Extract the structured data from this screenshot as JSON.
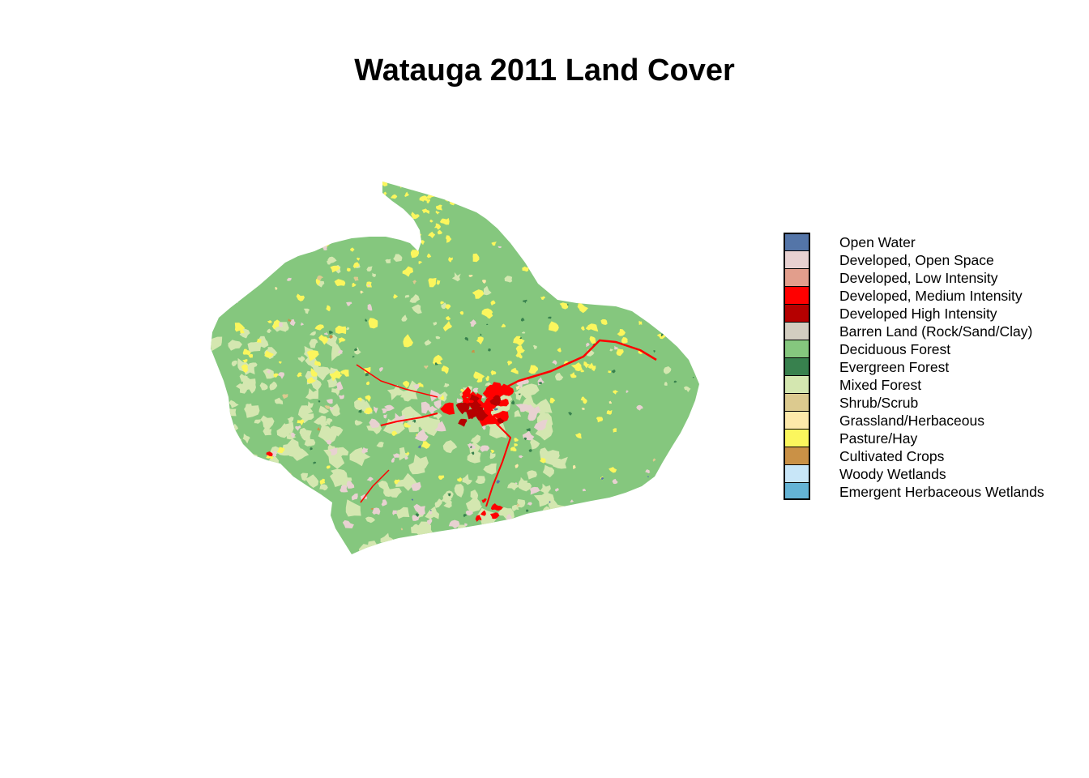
{
  "map": {
    "title": "Watauga 2011 Land Cover",
    "background_class": "Deciduous Forest",
    "legend": [
      {
        "label": "Open Water",
        "color": "#5475A8"
      },
      {
        "label": "Developed, Open Space",
        "color": "#E8D1D1"
      },
      {
        "label": "Developed, Low Intensity",
        "color": "#E29E8C"
      },
      {
        "label": "Developed, Medium Intensity",
        "color": "#FF0000"
      },
      {
        "label": "Developed High Intensity",
        "color": "#B50000"
      },
      {
        "label": "Barren Land (Rock/Sand/Clay)",
        "color": "#D2CDC0"
      },
      {
        "label": "Deciduous Forest",
        "color": "#85C77E"
      },
      {
        "label": "Evergreen Forest",
        "color": "#38814E"
      },
      {
        "label": "Mixed Forest",
        "color": "#D4E7B0"
      },
      {
        "label": "Shrub/Scrub",
        "color": "#DCCA8F"
      },
      {
        "label": "Grassland/Herbaceous",
        "color": "#FDE9AA"
      },
      {
        "label": "Pasture/Hay",
        "color": "#FBF65D"
      },
      {
        "label": "Cultivated Crops",
        "color": "#CA9146"
      },
      {
        "label": "Woody Wetlands",
        "color": "#C8E6F8"
      },
      {
        "label": "Emergent Herbaceous Wetlands",
        "color": "#64B3D5"
      }
    ]
  }
}
